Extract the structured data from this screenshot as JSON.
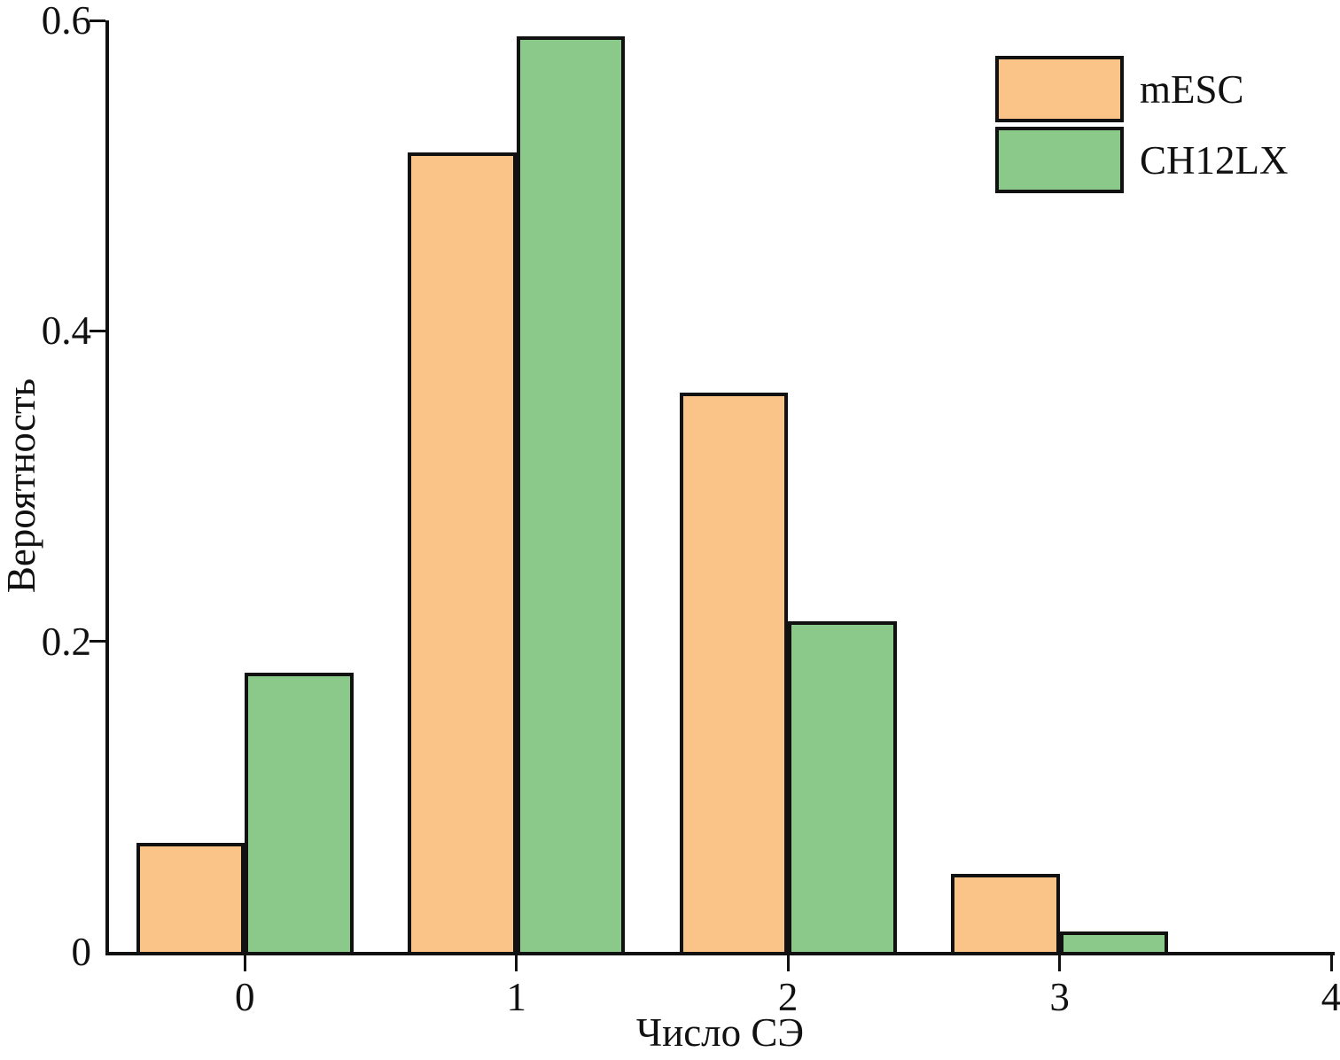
{
  "figure": {
    "background_color": "#ffffff",
    "text_color": "#111111",
    "axis_color": "#111111"
  },
  "chart_data": {
    "type": "bar",
    "title": "",
    "xlabel": "Число СЭ",
    "ylabel": "Вероятность",
    "categories": [
      0,
      1,
      2,
      3
    ],
    "series": [
      {
        "name": "mESC",
        "color": "#FAC388",
        "values": [
          0.07,
          0.515,
          0.36,
          0.05
        ]
      },
      {
        "name": "CH12LX",
        "color": "#8AC98A",
        "values": [
          0.18,
          0.59,
          0.213,
          0.013
        ]
      }
    ],
    "bar_width": 0.4,
    "xlim": [
      -0.5,
      4.0
    ],
    "ylim": [
      0,
      0.6
    ],
    "x_ticks": [
      0,
      1,
      2,
      3,
      4
    ],
    "x_tick_labels": [
      "0",
      "1",
      "2",
      "3",
      "4"
    ],
    "y_ticks": [
      0,
      0.2,
      0.4,
      0.6
    ],
    "y_tick_labels": [
      "0",
      "0.2",
      "0.4",
      "0.6"
    ],
    "grid": false,
    "legend_position": "top-right"
  }
}
